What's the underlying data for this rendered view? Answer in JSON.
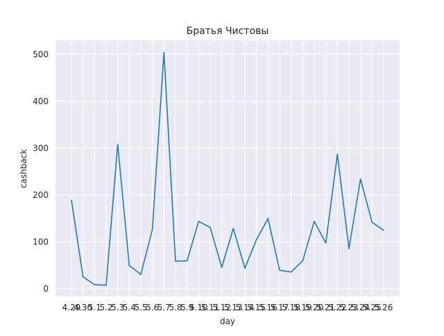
{
  "chart_data": {
    "type": "line",
    "title": "Братья Чистовы",
    "xlabel": "day",
    "ylabel": "cashback",
    "categories": [
      "4.29",
      "4.30",
      "5.1",
      "5.2",
      "5.3",
      "5.4",
      "5.5",
      "5.6",
      "5.7",
      "5.8",
      "5.9",
      "5.10",
      "5.11",
      "5.12",
      "5.13",
      "5.14",
      "5.15",
      "5.16",
      "5.17",
      "5.18",
      "5.19",
      "5.20",
      "5.21",
      "5.22",
      "5.23",
      "5.24",
      "5.25",
      "5.26"
    ],
    "series": [
      {
        "values": [
          189,
          26,
          9,
          8,
          308,
          50,
          31,
          127,
          504,
          59,
          60,
          144,
          131,
          46,
          129,
          44,
          105,
          150,
          40,
          36,
          60,
          144,
          98,
          287,
          86,
          234,
          142,
          125
        ],
        "color": "#1f77b4"
      }
    ],
    "y_ticks": [
      0,
      100,
      200,
      300,
      400,
      500
    ],
    "ylim": [
      -16,
      530
    ],
    "grid": true,
    "style": {
      "background": "#eaeaf2",
      "grid_color": "#ffffff"
    }
  }
}
